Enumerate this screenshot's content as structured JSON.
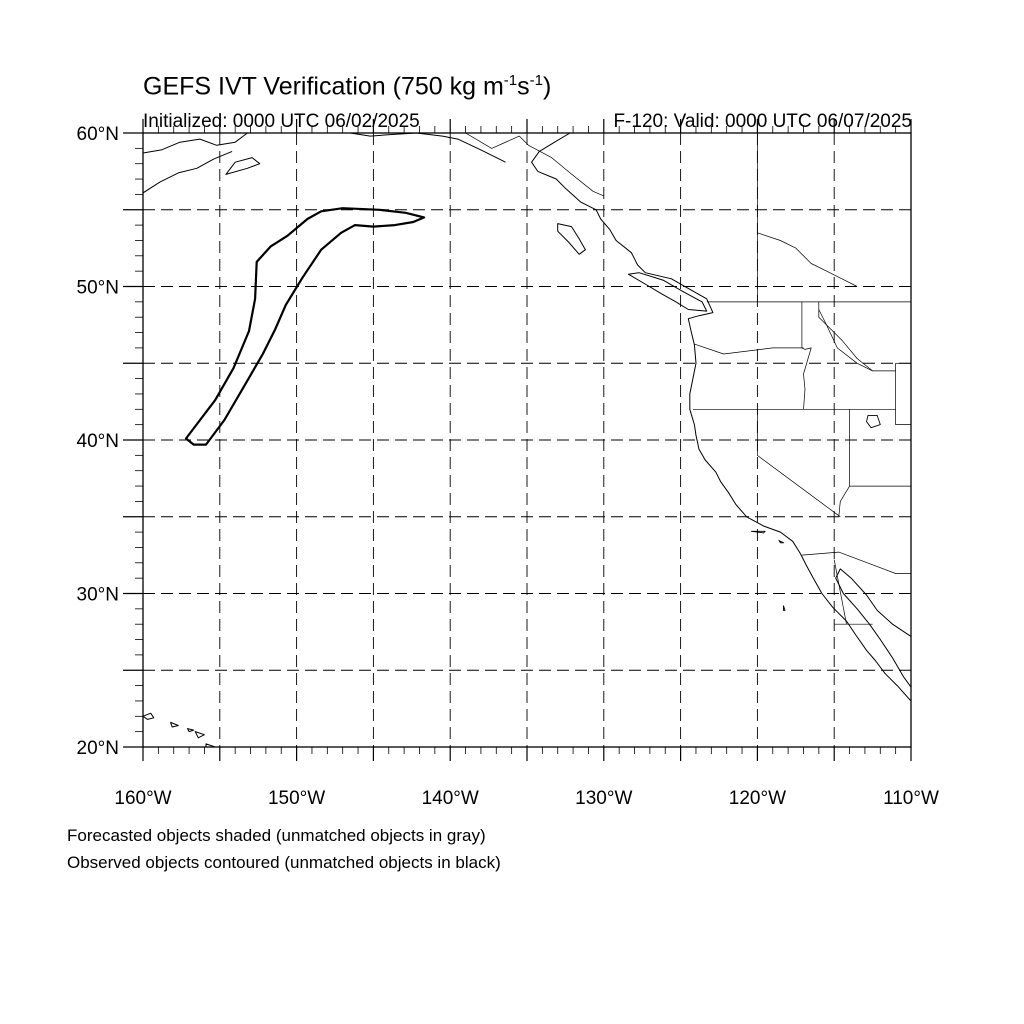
{
  "header": {
    "title_main": "GEFS IVT Verification (750 kg m",
    "title_exp1": "-1",
    "title_mid": "s",
    "title_exp2": "-1",
    "title_end": ")",
    "initialized": "Initialized: 0000 UTC 06/02/2025",
    "valid": "F-120: Valid: 0000 UTC 06/07/2025"
  },
  "map": {
    "lon_range": [
      -160,
      -110
    ],
    "lat_range": [
      20,
      60
    ],
    "grid_spacing_deg": 5,
    "lat_ticks": [
      {
        "lat": 20,
        "label": "20°N"
      },
      {
        "lat": 30,
        "label": "30°N"
      },
      {
        "lat": 40,
        "label": "40°N"
      },
      {
        "lat": 50,
        "label": "50°N"
      },
      {
        "lat": 60,
        "label": "60°N"
      }
    ],
    "lon_ticks": [
      {
        "lon": -160,
        "label": "160°W"
      },
      {
        "lon": -150,
        "label": "150°W"
      },
      {
        "lon": -140,
        "label": "140°W"
      },
      {
        "lon": -130,
        "label": "130°W"
      },
      {
        "lon": -120,
        "label": "120°W"
      },
      {
        "lon": -110,
        "label": "110°W"
      }
    ],
    "observed_object_contour": [
      [
        -156.7,
        39.7
      ],
      [
        -157.2,
        40.1
      ],
      [
        -155.3,
        42.6
      ],
      [
        -154.1,
        44.7
      ],
      [
        -153.1,
        47.1
      ],
      [
        -152.7,
        49.2
      ],
      [
        -152.6,
        51.6
      ],
      [
        -151.7,
        52.6
      ],
      [
        -150.6,
        53.3
      ],
      [
        -149.3,
        54.4
      ],
      [
        -148.4,
        54.9
      ],
      [
        -147.0,
        55.1
      ],
      [
        -144.6,
        55.0
      ],
      [
        -142.9,
        54.8
      ],
      [
        -141.7,
        54.5
      ],
      [
        -142.4,
        54.2
      ],
      [
        -143.6,
        54.0
      ],
      [
        -145.0,
        53.9
      ],
      [
        -146.2,
        54.0
      ],
      [
        -147.1,
        53.5
      ],
      [
        -148.4,
        52.4
      ],
      [
        -149.6,
        50.6
      ],
      [
        -150.7,
        48.8
      ],
      [
        -151.4,
        47.2
      ],
      [
        -152.2,
        45.6
      ],
      [
        -153.3,
        43.7
      ],
      [
        -154.7,
        41.3
      ],
      [
        -155.9,
        39.7
      ]
    ],
    "coastline": [
      [
        -132.2,
        60.0
      ],
      [
        -133.2,
        59.4
      ],
      [
        -134.2,
        58.8
      ],
      [
        -134.7,
        58.1
      ],
      [
        -134.3,
        57.5
      ],
      [
        -133.1,
        57.0
      ],
      [
        -132.5,
        56.4
      ],
      [
        -131.5,
        55.5
      ],
      [
        -130.5,
        55.0
      ],
      [
        -130.2,
        54.4
      ],
      [
        -129.6,
        53.7
      ],
      [
        -129.2,
        53.0
      ],
      [
        -128.2,
        52.2
      ],
      [
        -127.8,
        51.4
      ],
      [
        -127.3,
        50.9
      ],
      [
        -125.6,
        50.5
      ],
      [
        -124.2,
        49.7
      ],
      [
        -123.3,
        49.2
      ],
      [
        -122.9,
        48.3
      ],
      [
        -123.8,
        48.1
      ],
      [
        -124.5,
        47.9
      ],
      [
        -124.3,
        47.0
      ],
      [
        -124.1,
        46.2
      ],
      [
        -124.0,
        45.0
      ],
      [
        -124.2,
        44.0
      ],
      [
        -124.4,
        43.0
      ],
      [
        -124.4,
        42.0
      ],
      [
        -124.1,
        41.0
      ],
      [
        -124.0,
        40.3
      ],
      [
        -123.8,
        39.4
      ],
      [
        -123.4,
        38.7
      ],
      [
        -122.7,
        37.9
      ],
      [
        -122.4,
        37.3
      ],
      [
        -121.9,
        36.6
      ],
      [
        -121.4,
        35.8
      ],
      [
        -120.7,
        35.0
      ],
      [
        -119.6,
        34.4
      ],
      [
        -118.5,
        34.0
      ],
      [
        -117.7,
        33.4
      ],
      [
        -117.2,
        32.6
      ],
      [
        -116.8,
        31.8
      ],
      [
        -116.3,
        30.9
      ],
      [
        -115.8,
        30.0
      ],
      [
        -115.1,
        29.1
      ],
      [
        -114.2,
        28.2
      ],
      [
        -113.6,
        27.3
      ],
      [
        -112.9,
        26.3
      ],
      [
        -112.3,
        25.6
      ],
      [
        -111.7,
        24.8
      ],
      [
        -110.9,
        24.0
      ],
      [
        -110.0,
        23.0
      ]
    ],
    "gulf_east_coast": [
      [
        -110.0,
        27.2
      ],
      [
        -111.2,
        28.0
      ],
      [
        -112.2,
        28.9
      ],
      [
        -112.9,
        29.9
      ],
      [
        -113.9,
        31.0
      ],
      [
        -114.6,
        31.6
      ],
      [
        -114.9,
        31.0
      ],
      [
        -114.4,
        30.0
      ],
      [
        -113.5,
        29.0
      ],
      [
        -112.7,
        28.0
      ],
      [
        -112.0,
        27.0
      ],
      [
        -111.2,
        25.8
      ],
      [
        -110.5,
        24.6
      ],
      [
        -110.0,
        23.9
      ]
    ],
    "alaska_coast": [
      [
        -160.0,
        58.7
      ],
      [
        -158.8,
        58.9
      ],
      [
        -157.6,
        59.4
      ],
      [
        -156.3,
        59.6
      ],
      [
        -155.2,
        59.2
      ],
      [
        -154.0,
        59.4
      ],
      [
        -153.2,
        60.0
      ]
    ],
    "alaska_peninsula": [
      [
        -160.0,
        56.1
      ],
      [
        -158.9,
        56.8
      ],
      [
        -157.7,
        57.4
      ],
      [
        -156.5,
        57.7
      ],
      [
        -155.4,
        58.3
      ],
      [
        -154.2,
        58.8
      ]
    ],
    "kodiak": [
      [
        -154.6,
        57.3
      ],
      [
        -153.2,
        57.7
      ],
      [
        -152.4,
        58.0
      ],
      [
        -152.9,
        58.4
      ],
      [
        -154.0,
        58.1
      ],
      [
        -154.6,
        57.3
      ]
    ],
    "yakutat_coast": [
      [
        -146.5,
        60.0
      ],
      [
        -145.2,
        59.8
      ],
      [
        -143.8,
        59.9
      ],
      [
        -142.2,
        60.0
      ],
      [
        -140.5,
        59.8
      ],
      [
        -139.5,
        59.6
      ],
      [
        -138.0,
        58.9
      ],
      [
        -137.0,
        58.4
      ],
      [
        -136.4,
        58.1
      ]
    ],
    "vancouver_island": [
      [
        -128.4,
        50.8
      ],
      [
        -127.2,
        50.1
      ],
      [
        -126.2,
        49.5
      ],
      [
        -125.3,
        49.0
      ],
      [
        -124.5,
        48.5
      ],
      [
        -123.3,
        48.4
      ],
      [
        -123.6,
        49.0
      ],
      [
        -124.9,
        49.7
      ],
      [
        -126.1,
        50.4
      ],
      [
        -127.7,
        50.9
      ],
      [
        -128.4,
        50.8
      ]
    ],
    "haida_gwaii": [
      [
        -133.0,
        54.1
      ],
      [
        -132.1,
        53.9
      ],
      [
        -131.6,
        53.1
      ],
      [
        -131.2,
        52.4
      ],
      [
        -131.6,
        52.1
      ],
      [
        -132.3,
        52.9
      ],
      [
        -133.0,
        53.6
      ],
      [
        -133.0,
        54.1
      ]
    ],
    "hawaii_islands": [
      [
        [
          -160.0,
          22.0
        ],
        [
          -159.5,
          22.2
        ],
        [
          -159.3,
          21.9
        ],
        [
          -159.7,
          21.8
        ],
        [
          -160.0,
          22.0
        ]
      ],
      [
        [
          -158.2,
          21.6
        ],
        [
          -157.7,
          21.4
        ],
        [
          -158.1,
          21.3
        ],
        [
          -158.2,
          21.6
        ]
      ],
      [
        [
          -157.1,
          21.2
        ],
        [
          -156.7,
          21.1
        ],
        [
          -157.0,
          21.0
        ],
        [
          -157.1,
          21.2
        ]
      ],
      [
        [
          -156.6,
          21.0
        ],
        [
          -156.0,
          20.8
        ],
        [
          -156.4,
          20.6
        ],
        [
          -156.6,
          21.0
        ]
      ],
      [
        [
          -155.9,
          20.2
        ],
        [
          -155.0,
          19.9
        ],
        [
          -154.8,
          19.4
        ],
        [
          -155.5,
          19.0
        ],
        [
          -155.9,
          19.6
        ],
        [
          -155.9,
          20.2
        ]
      ]
    ],
    "channel_islands": [
      [
        [
          -120.4,
          34.05
        ],
        [
          -119.5,
          34.05
        ],
        [
          -119.6,
          33.95
        ],
        [
          -120.4,
          34.05
        ]
      ],
      [
        [
          -118.6,
          33.45
        ],
        [
          -118.3,
          33.3
        ],
        [
          -118.5,
          33.3
        ],
        [
          -118.6,
          33.45
        ]
      ]
    ],
    "guadalupe_island": [
      [
        -118.3,
        29.2
      ],
      [
        -118.2,
        28.9
      ],
      [
        -118.3,
        28.9
      ],
      [
        -118.3,
        29.2
      ]
    ],
    "great_salt_lake": [
      [
        -112.8,
        41.6
      ],
      [
        -112.2,
        41.6
      ],
      [
        -112.0,
        41.0
      ],
      [
        -112.6,
        40.8
      ],
      [
        -112.9,
        41.2
      ],
      [
        -112.8,
        41.6
      ]
    ],
    "borders": [
      [
        [
          -123.3,
          49.0
        ],
        [
          -110.0,
          49.0
        ]
      ],
      [
        [
          -124.2,
          42.0
        ],
        [
          -111.0,
          42.0
        ]
      ],
      [
        [
          -120.0,
          42.0
        ],
        [
          -120.0,
          39.0
        ],
        [
          -114.6,
          35.0
        ]
      ],
      [
        [
          -117.1,
          49.0
        ],
        [
          -117.1,
          46.0
        ],
        [
          -116.9,
          45.9
        ],
        [
          -116.5,
          46.0
        ],
        [
          -117.0,
          44.3
        ],
        [
          -116.9,
          43.3
        ],
        [
          -117.0,
          42.0
        ]
      ],
      [
        [
          -124.1,
          46.25
        ],
        [
          -122.2,
          45.6
        ],
        [
          -119.0,
          46.0
        ],
        [
          -117.0,
          46.0
        ]
      ],
      [
        [
          -114.0,
          42.0
        ],
        [
          -114.0,
          37.0
        ],
        [
          -114.6,
          36.0
        ],
        [
          -114.7,
          35.0
        ]
      ],
      [
        [
          -116.0,
          49.0
        ],
        [
          -116.0,
          48.0
        ],
        [
          -115.5,
          47.5
        ],
        [
          -114.5,
          46.5
        ],
        [
          -113.5,
          45.3
        ],
        [
          -112.5,
          44.5
        ],
        [
          -111.0,
          44.5
        ]
      ],
      [
        [
          -111.0,
          45.0
        ],
        [
          -110.0,
          45.0
        ]
      ],
      [
        [
          -111.0,
          45.0
        ],
        [
          -111.0,
          41.0
        ],
        [
          -110.0,
          41.0
        ]
      ],
      [
        [
          -114.0,
          37.0
        ],
        [
          -110.0,
          37.0
        ]
      ],
      [
        [
          -117.1,
          32.5
        ],
        [
          -114.7,
          32.7
        ],
        [
          -111.0,
          31.3
        ],
        [
          -110.0,
          31.3
        ]
      ],
      [
        [
          -115.0,
          32.2
        ],
        [
          -114.2,
          28.0
        ]
      ],
      [
        [
          -115.0,
          28.0
        ],
        [
          -112.5,
          28.0
        ]
      ],
      [
        [
          -139.0,
          60.0
        ],
        [
          -137.3,
          59.0
        ],
        [
          -135.5,
          59.8
        ],
        [
          -134.9,
          59.2
        ],
        [
          -133.4,
          58.4
        ],
        [
          -132.2,
          57.4
        ],
        [
          -130.7,
          56.2
        ],
        [
          -130.0,
          55.9
        ]
      ],
      [
        [
          -120.0,
          60.0
        ],
        [
          -120.0,
          49.0
        ]
      ],
      [
        [
          -110.0,
          59.7
        ],
        [
          -110.0,
          49.0
        ]
      ]
    ],
    "rivers_interior": [
      [
        [
          -120.0,
          53.5
        ],
        [
          -118.5,
          53.0
        ],
        [
          -117.5,
          52.5
        ],
        [
          -116.5,
          51.5
        ],
        [
          -115.5,
          51.0
        ],
        [
          -114.5,
          50.5
        ],
        [
          -113.5,
          50.0
        ]
      ],
      [
        [
          -116.0,
          48.5
        ],
        [
          -115.5,
          47.5
        ],
        [
          -114.8,
          46.0
        ],
        [
          -113.5,
          45.0
        ],
        [
          -112.5,
          44.5
        ]
      ]
    ],
    "hudson_bay_fragment": [
      [
        -110.0,
        59.7
      ],
      [
        -109.0,
        60.0
      ]
    ]
  },
  "notes": {
    "line1": "Forecasted objects shaded (unmatched objects in gray)",
    "line2": "Observed objects contoured (unmatched objects in black)"
  },
  "colors": {
    "observed_unmatched": "#000000",
    "grid": "#000000",
    "coast": "#000000"
  }
}
